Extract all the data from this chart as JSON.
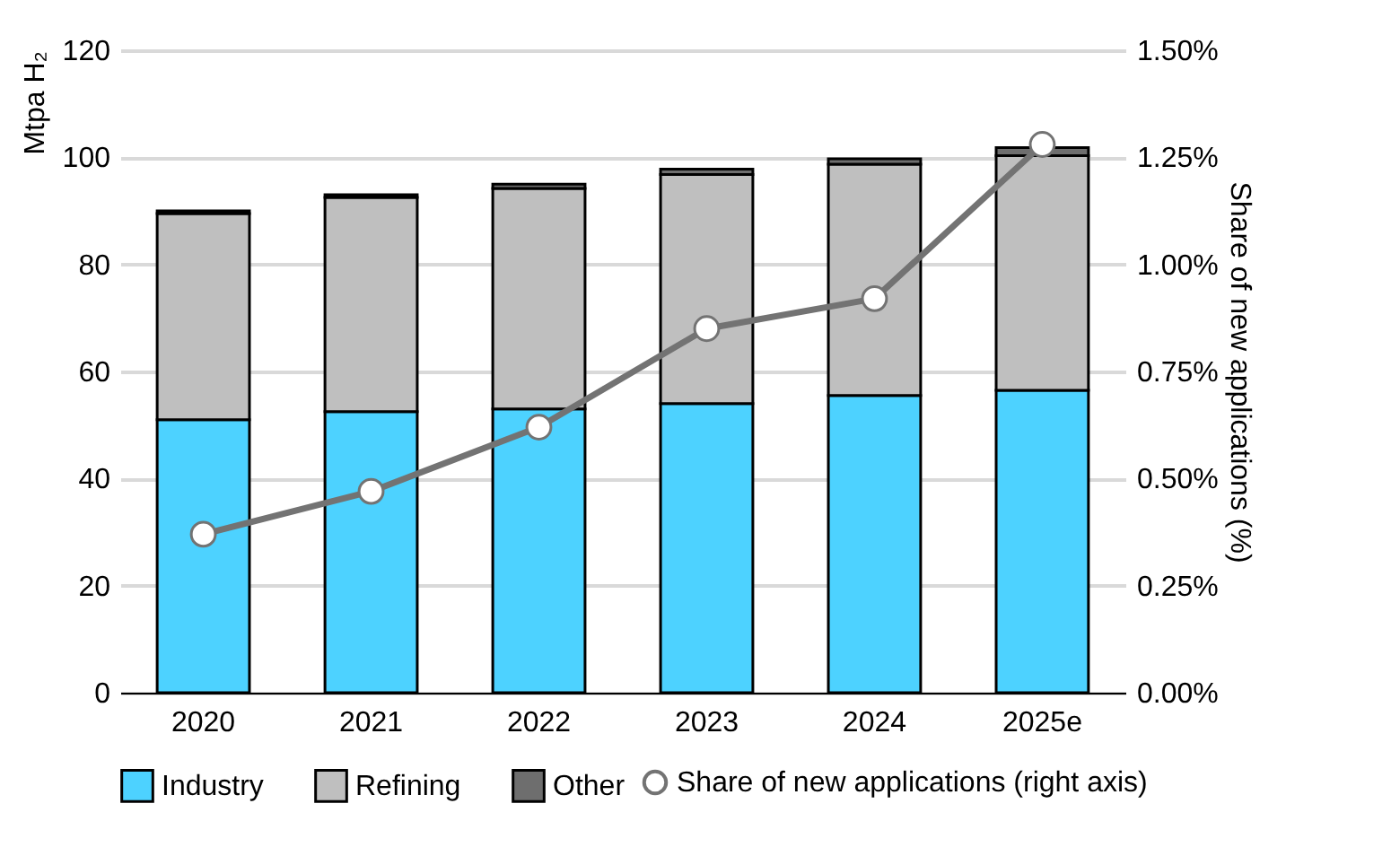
{
  "chart_data": {
    "type": "bar",
    "stacked": true,
    "categories": [
      "2020",
      "2021",
      "2022",
      "2023",
      "2024",
      "2025e"
    ],
    "ylabel": "Mtpa H₂",
    "y2label": "Share of new applications (%)",
    "ylim": [
      0,
      120
    ],
    "yticks": [
      0,
      20,
      40,
      60,
      80,
      100,
      120
    ],
    "y2lim": [
      0,
      1.5
    ],
    "y2ticks": [
      {
        "value": 0,
        "label": "0.00%"
      },
      {
        "value": 0.25,
        "label": "0.25%"
      },
      {
        "value": 0.5,
        "label": "0.50%"
      },
      {
        "value": 0.75,
        "label": "0.75%"
      },
      {
        "value": 1.0,
        "label": "1.00%"
      },
      {
        "value": 1.25,
        "label": "1.25%"
      },
      {
        "value": 1.5,
        "label": "1.50%"
      }
    ],
    "grid": "y",
    "legend": "bottom",
    "series": [
      {
        "name": "Industry",
        "color": "#4dd2ff",
        "values": [
          51,
          52.5,
          53,
          54,
          55.5,
          56.5
        ]
      },
      {
        "name": "Refining",
        "color": "#bfbfbf",
        "values": [
          38.5,
          40,
          41.2,
          42.8,
          43.2,
          43.8
        ]
      },
      {
        "name": "Other",
        "color": "#6e6e6e",
        "values": [
          0.5,
          0.5,
          0.8,
          1,
          1,
          1.5
        ]
      },
      {
        "name": "Share of new applications (right axis)",
        "type": "line",
        "axis": "y2",
        "color": "#737373",
        "marker": "circle",
        "values": [
          0.37,
          0.47,
          0.62,
          0.85,
          0.92,
          1.28
        ]
      }
    ]
  }
}
